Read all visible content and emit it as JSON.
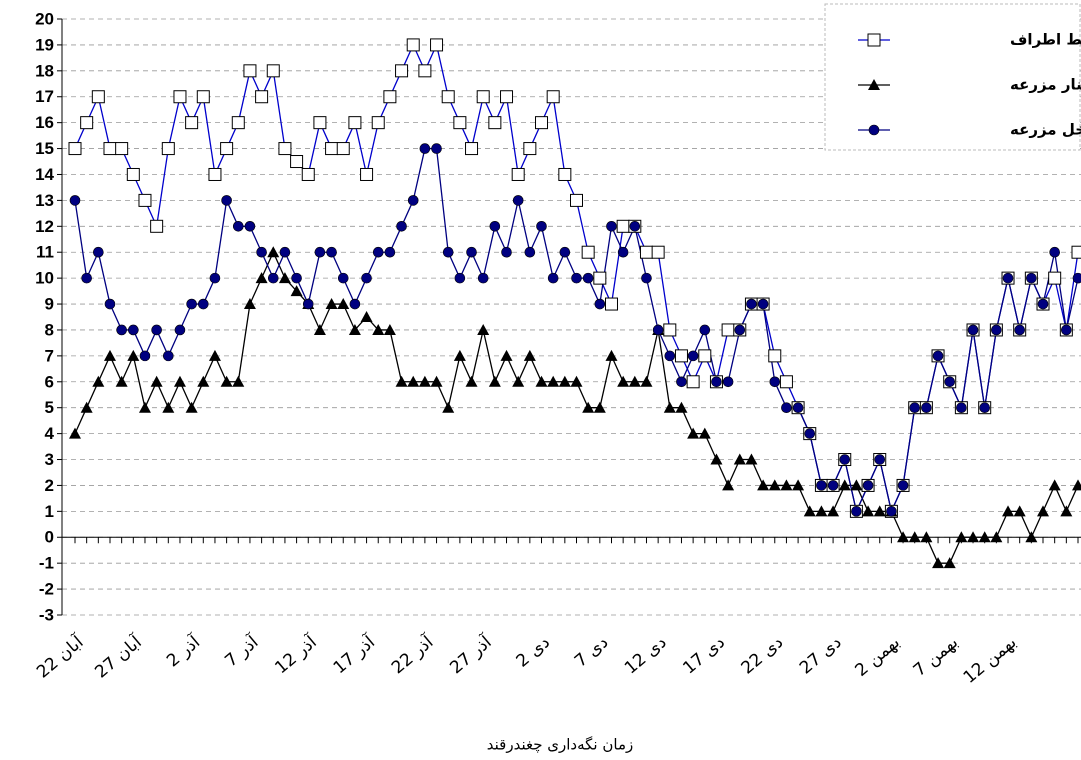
{
  "chart_data": {
    "type": "line",
    "x_label": "زمان نگه‌داری چغندرقند",
    "categories": [
      "22 آبان",
      null,
      null,
      null,
      null,
      "27 آبان",
      null,
      null,
      null,
      null,
      "2 آذر",
      null,
      null,
      null,
      null,
      "7 آذر",
      null,
      null,
      null,
      null,
      "12 آذر",
      null,
      null,
      null,
      null,
      "17 آذر",
      null,
      null,
      null,
      null,
      "22 آذر",
      null,
      null,
      null,
      null,
      "27 آذر",
      null,
      null,
      null,
      null,
      "2 دی",
      null,
      null,
      null,
      null,
      "7 دی",
      null,
      null,
      null,
      null,
      "12 دی",
      null,
      null,
      null,
      null,
      "17 دی",
      null,
      null,
      null,
      null,
      "22 دی",
      null,
      null,
      null,
      null,
      "27 دی",
      null,
      null,
      null,
      null,
      "2 بهمن",
      null,
      null,
      null,
      null,
      "7 بهمن",
      null,
      null,
      null,
      null,
      "12 بهمن",
      null,
      null,
      null,
      null,
      null,
      null
    ],
    "series": [
      {
        "name": "محیط اطراف",
        "color": "#0000cc",
        "marker": "square",
        "values": [
          15,
          16,
          17,
          15,
          15,
          14,
          13,
          12,
          15,
          17,
          16,
          17,
          14,
          15,
          16,
          18,
          17,
          18,
          15,
          14.5,
          14,
          16,
          15,
          15,
          16,
          14,
          16,
          17,
          18,
          19,
          18,
          19,
          17,
          16,
          15,
          17,
          16,
          17,
          14,
          15,
          16,
          17,
          14,
          13,
          11,
          10,
          9,
          12,
          12,
          11,
          11,
          8,
          7,
          6,
          7,
          6,
          8,
          8,
          9,
          9,
          7,
          6,
          5,
          4,
          2,
          2,
          3,
          1,
          2,
          3,
          1,
          2,
          5,
          5,
          7,
          6,
          5,
          8,
          5,
          8,
          10,
          8,
          10,
          9,
          10,
          8,
          11
        ]
      },
      {
        "name": "سیلوی کنار مزرعه",
        "color": "#000000",
        "marker": "triangle",
        "values": [
          4,
          5,
          6,
          7,
          6,
          7,
          5,
          6,
          5,
          6,
          5,
          6,
          7,
          6,
          6,
          9,
          10,
          11,
          10,
          9.5,
          9,
          8,
          9,
          9,
          8,
          8.5,
          8,
          8,
          6,
          6,
          6,
          6,
          5,
          7,
          6,
          8,
          6,
          7,
          6,
          7,
          6,
          6,
          6,
          6,
          5,
          5,
          7,
          6,
          6,
          6,
          8,
          5,
          5,
          4,
          4,
          3,
          2,
          3,
          3,
          2,
          2,
          2,
          2,
          1,
          1,
          1,
          2,
          2,
          1,
          1,
          1,
          0,
          0,
          0,
          -1,
          -1,
          0,
          0,
          0,
          0,
          1,
          1,
          0,
          1,
          2,
          1,
          2
        ]
      },
      {
        "name": "کپه داخل مزرعه",
        "color": "#000080",
        "marker": "circle",
        "values": [
          13,
          10,
          11,
          9,
          8,
          8,
          7,
          8,
          7,
          8,
          9,
          9,
          10,
          13,
          12,
          12,
          11,
          10,
          11,
          10,
          9,
          11,
          11,
          10,
          9,
          10,
          11,
          11,
          12,
          13,
          15,
          15,
          11,
          10,
          11,
          10,
          12,
          11,
          13,
          11,
          12,
          10,
          11,
          10,
          10,
          9,
          12,
          11,
          12,
          10,
          8,
          7,
          6,
          7,
          8,
          6,
          6,
          8,
          9,
          9,
          6,
          5,
          5,
          4,
          2,
          2,
          3,
          1,
          2,
          3,
          1,
          2,
          5,
          5,
          7,
          6,
          5,
          8,
          5,
          8,
          10,
          8,
          10,
          9,
          11,
          8,
          10
        ]
      }
    ],
    "ylim": [
      -3,
      20
    ],
    "yticks": [
      -3,
      -2,
      -1,
      0,
      1,
      2,
      3,
      4,
      5,
      6,
      7,
      8,
      9,
      10,
      11,
      12,
      13,
      14,
      15,
      16,
      17,
      18,
      19,
      20
    ],
    "grid": true,
    "legend": "upper right"
  }
}
